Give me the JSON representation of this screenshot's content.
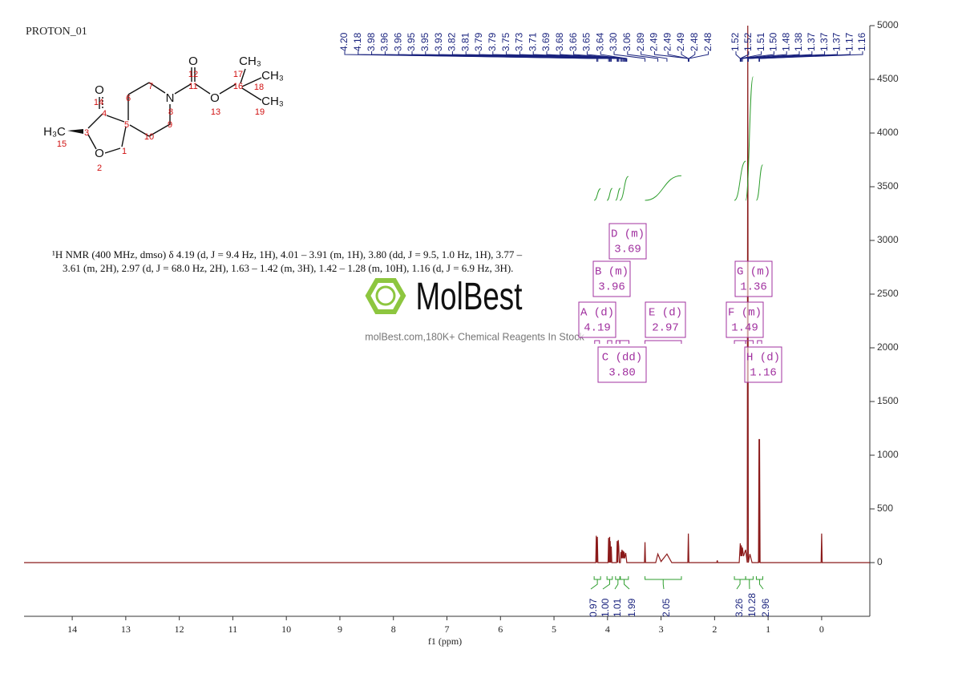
{
  "title": "PROTON_01",
  "description": "¹H NMR (400 MHz, dmso) δ 4.19 (d, J = 9.4 Hz, 1H), 4.01 – 3.91 (m, 1H), 3.80 (dd, J = 9.5, 1.0 Hz, 1H), 3.77 – 3.61 (m, 2H), 2.97 (d, J = 68.0 Hz, 2H), 1.63 – 1.42 (m, 3H), 1.42 – 1.28 (m, 10H), 1.16 (d, J = 6.9 Hz, 3H).",
  "watermark": {
    "brand": "MolBest",
    "tagline": "molBest.com,180K+ Chemical Reagents In Stock"
  },
  "structure": {
    "atoms": [
      "O",
      "H₃C",
      "O",
      "N",
      "O",
      "O",
      "CH₃",
      "CH₃",
      "CH₃"
    ],
    "numbers": [
      "14",
      "4",
      "15",
      "3",
      "2",
      "1",
      "5",
      "6",
      "7",
      "10",
      "8",
      "9",
      "11",
      "12",
      "13",
      "16",
      "17",
      "18",
      "19"
    ]
  },
  "chart_data": {
    "type": "nmr",
    "xlabel": "f1 (ppm)",
    "xlim": [
      14.9,
      -0.9
    ],
    "xticks": [
      14,
      13,
      12,
      11,
      10,
      9,
      8,
      7,
      6,
      5,
      4,
      3,
      2,
      1,
      0
    ],
    "ylim": [
      -500,
      5000
    ],
    "yticks": [
      0,
      500,
      1000,
      1500,
      2000,
      2500,
      3000,
      3500,
      4000,
      4500,
      5000
    ],
    "color": "#8b1a1a",
    "x": [
      14.9,
      4.22,
      4.21,
      4.2,
      4.19,
      4.18,
      3.99,
      3.98,
      3.97,
      3.96,
      3.955,
      3.95,
      3.94,
      3.93,
      3.92,
      3.83,
      3.82,
      3.81,
      3.8,
      3.79,
      3.78,
      3.76,
      3.75,
      3.74,
      3.73,
      3.72,
      3.71,
      3.7,
      3.69,
      3.68,
      3.66,
      3.64,
      3.31,
      3.3,
      3.29,
      3.1,
      3.06,
      3.0,
      2.89,
      2.8,
      2.5,
      2.49,
      2.48,
      1.96,
      1.95,
      1.94,
      1.54,
      1.52,
      1.51,
      1.5,
      1.49,
      1.48,
      1.46,
      1.42,
      1.39,
      1.38,
      1.37,
      1.34,
      1.3,
      1.18,
      1.17,
      1.165,
      1.16,
      1.15,
      0.01,
      0,
      -0.01,
      -0.9
    ],
    "values": [
      0,
      0,
      250,
      0,
      240,
      0,
      0,
      230,
      0,
      240,
      0,
      200,
      0,
      150,
      0,
      0,
      200,
      0,
      210,
      150,
      0,
      0,
      100,
      40,
      120,
      40,
      110,
      40,
      100,
      40,
      90,
      0,
      0,
      190,
      0,
      0,
      80,
      10,
      80,
      0,
      0,
      270,
      0,
      0,
      20,
      0,
      0,
      180,
      60,
      160,
      60,
      140,
      60,
      120,
      0,
      5000,
      0,
      80,
      0,
      0,
      1150,
      0,
      1150,
      0,
      0,
      270,
      0,
      0
    ],
    "peak_label_color": "#1a237e",
    "peak_labels": {
      "values": [
        4.2,
        4.18,
        3.98,
        3.96,
        3.96,
        3.95,
        3.95,
        3.93,
        3.82,
        3.81,
        3.79,
        3.79,
        3.75,
        3.73,
        3.71,
        3.69,
        3.68,
        3.66,
        3.65,
        3.64,
        3.3,
        3.06,
        2.89,
        2.49,
        2.49,
        2.49,
        2.48,
        2.48,
        1.52,
        1.52,
        1.51,
        1.5,
        1.48,
        1.38,
        1.37,
        1.37,
        1.37,
        1.17,
        1.16
      ],
      "value_labels": [
        "4.20",
        "4.18",
        "3.98",
        "3.96",
        "3.96",
        "3.95",
        "3.95",
        "3.93",
        "3.82",
        "3.81",
        "3.79",
        "3.79",
        "3.75",
        "3.73",
        "3.71",
        "3.69",
        "3.68",
        "3.66",
        "3.65",
        "3.64",
        "3.30",
        "3.06",
        "2.89",
        "2.49",
        "2.49",
        "2.49",
        "2.48",
        "2.48",
        "1.52",
        "1.52",
        "1.51",
        "1.50",
        "1.48",
        "1.38",
        "1.37",
        "1.37",
        "1.37",
        "1.17",
        "1.16"
      ]
    },
    "multiplet_color": "#a0309f",
    "multiplets": {
      "names": [
        "A (d)",
        "B (m)",
        "C (dd)",
        "D (m)",
        "E (d)",
        "F (m)",
        "G (m)",
        "H (d)"
      ],
      "values": [
        4.19,
        3.96,
        3.8,
        3.69,
        2.97,
        1.49,
        1.36,
        1.16
      ],
      "value_labels": [
        "4.19",
        "3.96",
        "3.80",
        "3.69",
        "2.97",
        "1.49",
        "1.36",
        "1.16"
      ],
      "ranges": [
        [
          4.24,
          4.15
        ],
        [
          4.0,
          3.92
        ],
        [
          3.84,
          3.77
        ],
        [
          3.77,
          3.6
        ],
        [
          3.3,
          2.62
        ],
        [
          1.63,
          1.42
        ],
        [
          1.42,
          1.28
        ],
        [
          1.2,
          1.12
        ]
      ]
    },
    "integral_color": "#2e9e2e",
    "integrals": {
      "values": [
        0.97,
        1,
        1.01,
        1.99,
        2.05,
        3.26,
        10.28,
        2.96
      ],
      "value_labels": [
        "0.97",
        "1.00",
        "1.01",
        "1.99",
        "2.05",
        "3.26",
        "10.28",
        "2.96"
      ],
      "ranges": [
        [
          4.25,
          4.13
        ],
        [
          4.01,
          3.91
        ],
        [
          3.85,
          3.76
        ],
        [
          3.77,
          3.61
        ],
        [
          3.3,
          2.62
        ],
        [
          1.63,
          1.42
        ],
        [
          1.42,
          1.28
        ],
        [
          1.22,
          1.1
        ]
      ]
    }
  }
}
